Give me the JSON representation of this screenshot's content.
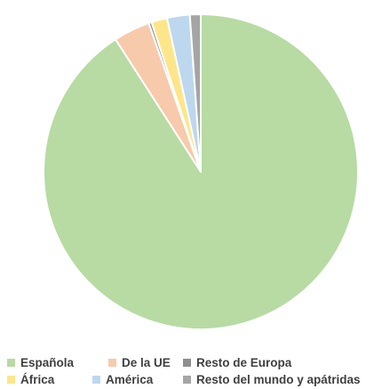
{
  "chart_data": {
    "type": "pie",
    "title": "",
    "start": "12 o'clock, clockwise",
    "categories": [
      "Española",
      "De la UE",
      "Resto de Europa",
      "África",
      "América",
      "Resto del mundo y apátridas"
    ],
    "values": [
      89.7,
      3.7,
      0.3,
      1.6,
      2.3,
      1.1
    ],
    "colors": [
      "#b7dba3",
      "#f7caac",
      "#8f8f8f",
      "#fde68a",
      "#bdd7ee",
      "#a5a5a5"
    ],
    "slice_order_clockwise_from_top": [
      "Española",
      "De la UE",
      "Resto de Europa",
      "África",
      "América",
      "Resto del mundo y apátridas"
    ],
    "legend_position": "bottom",
    "data_labels": false,
    "border_color": "#ffffff"
  },
  "legend": {
    "rows": [
      [
        {
          "label": "Española",
          "color": "#b7dba3"
        },
        {
          "label": "De la UE",
          "color": "#f7caac"
        },
        {
          "label": "Resto de Europa",
          "color": "#8f8f8f"
        }
      ],
      [
        {
          "label": "África",
          "color": "#fde68a"
        },
        {
          "label": "América",
          "color": "#bdd7ee"
        },
        {
          "label": "Resto del mundo y apátridas",
          "color": "#a5a5a5"
        }
      ]
    ]
  }
}
